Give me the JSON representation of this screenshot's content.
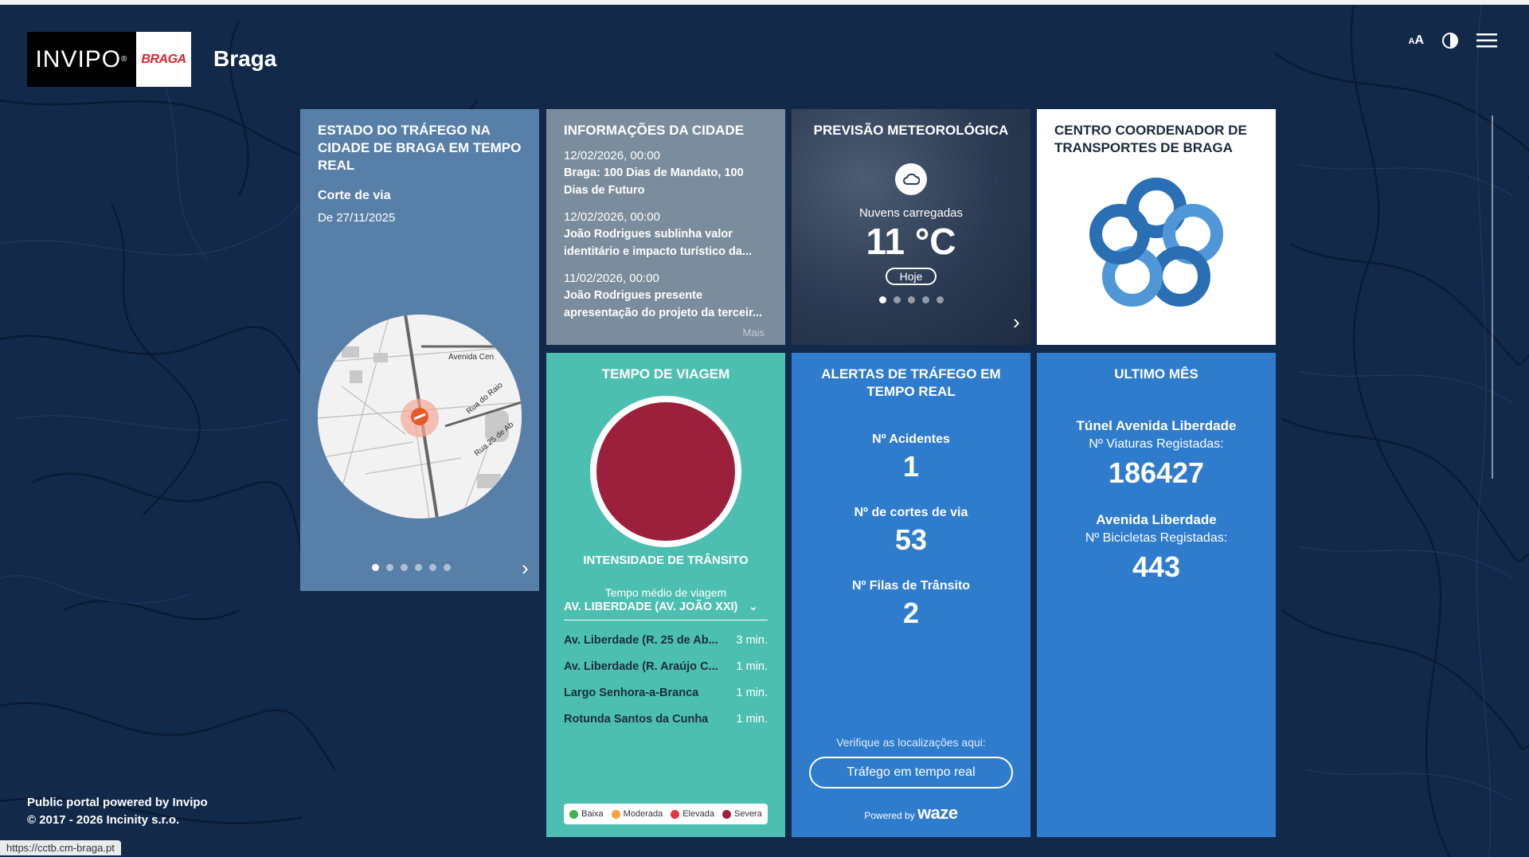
{
  "header": {
    "logo_invipo": "INVIPO",
    "logo_braga": "BRAGA",
    "city": "Braga",
    "tools": {
      "font_size_label": "AA",
      "contrast_icon": "contrast-icon",
      "menu_icon": "hamburger-menu-icon"
    }
  },
  "traffic_state": {
    "title": "Estado do tráfego na cidade de Braga em tempo real",
    "event_type": "Corte de via",
    "event_date": "De 27/11/2025",
    "map_labels": [
      "Avenida Cen",
      "Rua do Raio",
      "Rua 25 de Ab"
    ],
    "slides": 6,
    "active_slide": 1
  },
  "city_info": {
    "title": "Informações da cidade",
    "news": [
      {
        "date": "12/02/2026, 00:00",
        "text": "Braga: 100 Dias de Mandato, 100 Dias de Futuro"
      },
      {
        "date": "12/02/2026, 00:00",
        "text": "João Rodrigues sublinha valor identitário e impacto turístico da..."
      },
      {
        "date": "11/02/2026, 00:00",
        "text": "João Rodrigues presente apresentação do projeto da terceir..."
      }
    ],
    "more_label": "Mais"
  },
  "weather": {
    "title": "Previsão meteorológica",
    "icon": "cloud-icon",
    "description": "Nuvens carregadas",
    "temperature": "11 °C",
    "day_button": "Hoje",
    "slides": 5,
    "active_slide": 1
  },
  "transport_center": {
    "title": "Centro Coordenador de Transportes de Braga",
    "logo_icon": "knot-logo-icon"
  },
  "travel_time": {
    "title": "Tempo de viagem",
    "intensity_label": "Intensidade de trânsito",
    "avg_label": "Tempo médio de viagem",
    "selected_route": "AV. LIBERDADE (AV. JOÃO XXI)",
    "rows": [
      {
        "name": "Av. Liberdade (R. 25 de Ab...",
        "time": "3 min."
      },
      {
        "name": "Av. Liberdade (R. Araújo C...",
        "time": "1 min."
      },
      {
        "name": "Largo Senhora-a-Branca",
        "time": "1 min."
      },
      {
        "name": "Rotunda Santos da Cunha",
        "time": "1 min."
      }
    ],
    "legend": [
      {
        "label": "Baixa",
        "color": "#3db54a"
      },
      {
        "label": "Moderada",
        "color": "#f2a33a"
      },
      {
        "label": "Elevada",
        "color": "#e5343c"
      },
      {
        "label": "Severa",
        "color": "#9c1f3b"
      }
    ],
    "intensity_color": "#9c1f3b"
  },
  "alerts": {
    "title": "Alertas de tráfego em tempo real",
    "stats": [
      {
        "label": "Nº Acidentes",
        "value": "1"
      },
      {
        "label": "Nº de cortes de via",
        "value": "53"
      },
      {
        "label": "Nº Filas de Trânsito",
        "value": "2"
      }
    ],
    "verify_label": "Verifique as localizações aqui:",
    "button_label": "Tráfego em tempo real",
    "powered_by": "Powered by",
    "powered_brand": "waze"
  },
  "last_month": {
    "title": "Ultimo mês",
    "items": [
      {
        "place": "Túnel Avenida Liberdade",
        "label": "Nº Viaturas Registadas:",
        "value": "186427"
      },
      {
        "place": "Avenida Liberdade",
        "label": "Nº Bicicletas Registadas:",
        "value": "443"
      }
    ]
  },
  "footer": {
    "line1": "Public portal powered by Invipo",
    "line2": "© 2017 - 2026 Incinity s.r.o."
  },
  "status_url": "https://cctb.cm-braga.pt",
  "colors": {
    "background": "#13294a",
    "tile_traffic": "#587fa7",
    "tile_info": "#7b8d9c",
    "tile_travel": "#4dbfb1",
    "tile_blue": "#2f7ccd"
  }
}
